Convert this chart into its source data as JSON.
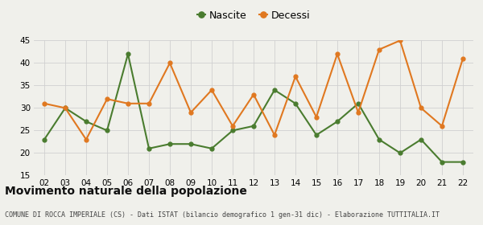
{
  "years": [
    "02",
    "03",
    "04",
    "05",
    "06",
    "07",
    "08",
    "09",
    "10",
    "11",
    "12",
    "13",
    "14",
    "15",
    "16",
    "17",
    "18",
    "19",
    "20",
    "21",
    "22"
  ],
  "nascite": [
    23,
    30,
    27,
    25,
    42,
    21,
    22,
    22,
    21,
    25,
    26,
    34,
    31,
    24,
    27,
    31,
    23,
    20,
    23,
    18,
    18
  ],
  "decessi": [
    31,
    30,
    23,
    32,
    31,
    31,
    40,
    29,
    34,
    26,
    33,
    24,
    37,
    28,
    42,
    29,
    43,
    45,
    30,
    26,
    41
  ],
  "nascite_color": "#4a7c2f",
  "decessi_color": "#e07820",
  "ylim": [
    15,
    45
  ],
  "yticks": [
    15,
    20,
    25,
    30,
    35,
    40,
    45
  ],
  "title": "Movimento naturale della popolazione",
  "subtitle": "COMUNE DI ROCCA IMPERIALE (CS) - Dati ISTAT (bilancio demografico 1 gen-31 dic) - Elaborazione TUTTITALIA.IT",
  "legend_nascite": "Nascite",
  "legend_decessi": "Decessi",
  "background_color": "#f0f0eb",
  "grid_color": "#d0d0d0"
}
